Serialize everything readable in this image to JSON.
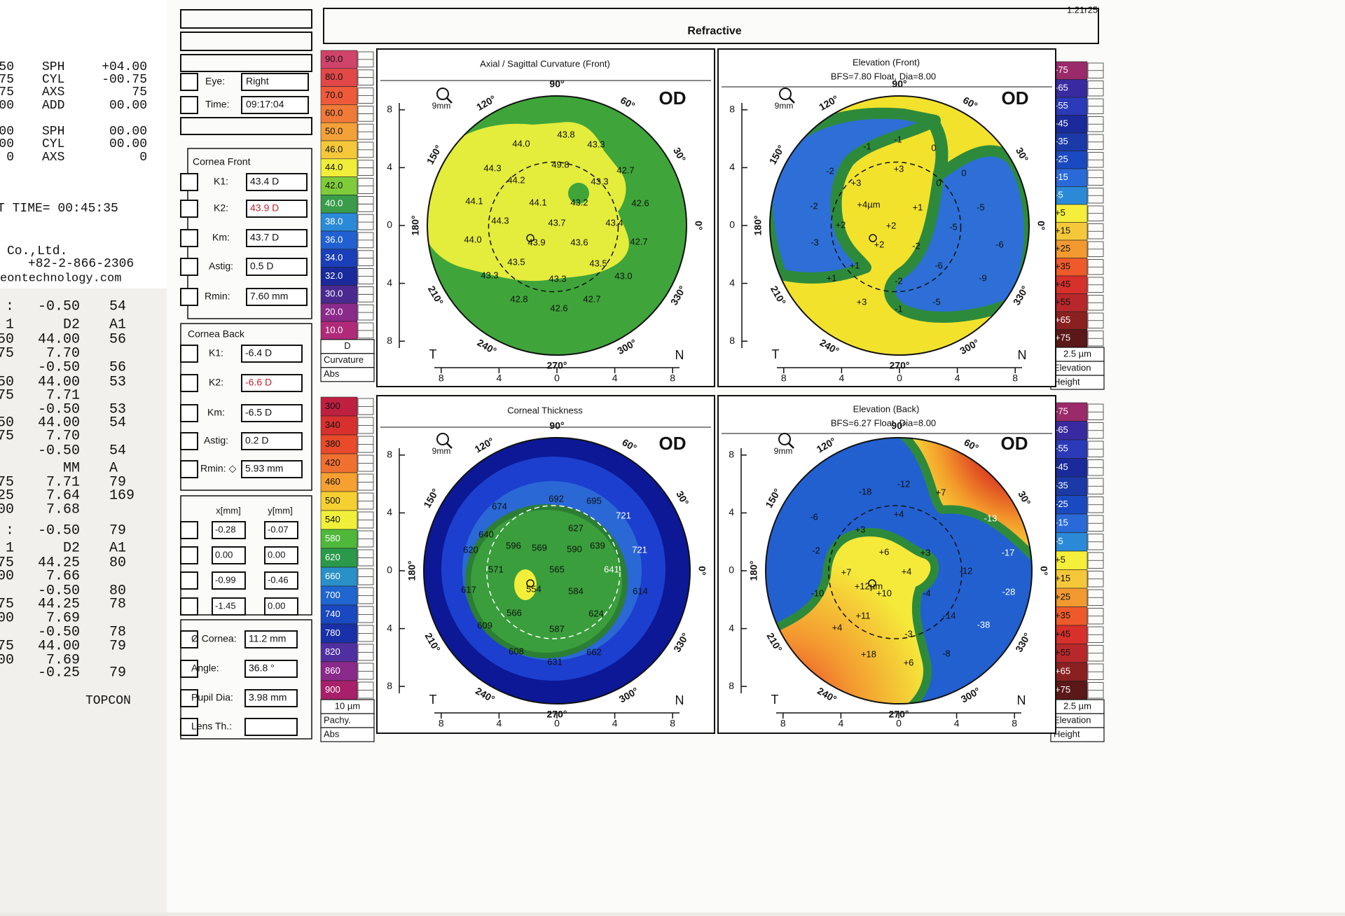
{
  "header": {
    "title": "Refractive",
    "code": "1.21r25"
  },
  "receipt": {
    "rows": [
      {
        "left": "50",
        "key": "SPH",
        "value": "+04.00"
      },
      {
        "left": "75",
        "key": "CYL",
        "value": "-00.75"
      },
      {
        "left": "75",
        "key": "AXS",
        "value": "75"
      },
      {
        "left": "00",
        "key": "ADD",
        "value": "00.00"
      },
      {
        "left": "00",
        "key": "SPH",
        "value": "00.00"
      },
      {
        "left": "00",
        "key": "CYL",
        "value": "00.00"
      },
      {
        "left": "0",
        "key": "AXS",
        "value": "0"
      }
    ],
    "time": "T TIME= 00:45:35",
    "company": "Co.,Ltd.",
    "phone": "+82-2-866-2306",
    "web": "eontechnology.com"
  },
  "printout": {
    "rows": [
      {
        "left": ":",
        "mid": "-0.50",
        "right": "54"
      },
      {
        "left": "1",
        "mid": "D2",
        "right": "A1"
      },
      {
        "left": "50",
        "mid": "44.00",
        "right": "56"
      },
      {
        "left": "75",
        "mid": "7.70"
      },
      {
        "mid": "-0.50",
        "right": "56"
      },
      {
        "left": "50",
        "mid": "44.00",
        "right": "53"
      },
      {
        "left": "75",
        "mid": "7.71"
      },
      {
        "mid": "-0.50",
        "right": "53"
      },
      {
        "left": "50",
        "mid": "44.00",
        "right": "54"
      },
      {
        "left": "75",
        "mid": "7.70"
      },
      {
        "mid": "-0.50",
        "right": "54"
      },
      {
        "mid": "MM",
        "right": "A"
      },
      {
        "left": "75",
        "mid": "7.71",
        "right": "79"
      },
      {
        "left": "25",
        "mid": "7.64",
        "right": "169"
      },
      {
        "left": "00",
        "mid": "7.68"
      },
      {
        "left": ":",
        "mid": "-0.50",
        "right": "79"
      },
      {
        "left": "1",
        "mid": "D2",
        "right": "A1"
      },
      {
        "left": "75",
        "mid": "44.25",
        "right": "80"
      },
      {
        "left": "00",
        "mid": "7.66"
      },
      {
        "mid": "-0.50",
        "right": "80"
      },
      {
        "left": "75",
        "mid": "44.25",
        "right": "78"
      },
      {
        "left": "00",
        "mid": "7.69"
      },
      {
        "mid": "-0.50",
        "right": "78"
      },
      {
        "left": "75",
        "mid": "44.00",
        "right": "79"
      },
      {
        "left": "00",
        "mid": "7.69"
      },
      {
        "mid": "-0.25",
        "right": "79"
      }
    ],
    "brand": "TOPCON"
  },
  "panel": {
    "eye": {
      "label": "Eye:",
      "value": "Right"
    },
    "time": {
      "label": "Time:",
      "value": "09:17:04"
    },
    "front": {
      "title": "Cornea Front",
      "rows": [
        {
          "label": "K1:",
          "value": "43.4 D"
        },
        {
          "label": "K2:",
          "value": "43.9 D",
          "color": "#c0262d"
        },
        {
          "label": "Km:",
          "value": "43.7 D"
        },
        {
          "label": "Astig:",
          "value": "0.5 D"
        },
        {
          "label": "Rmin:",
          "value": "7.60 mm"
        }
      ]
    },
    "back": {
      "title": "Cornea Back",
      "rows": [
        {
          "label": "K1:",
          "value": "-6.4 D"
        },
        {
          "label": "K2:",
          "value": "-6.6 D",
          "color": "#c0262d"
        },
        {
          "label": "Km:",
          "value": "-6.5 D"
        },
        {
          "label": "Astig:",
          "value": "0.2 D"
        },
        {
          "label": "Rmin: ◇",
          "value": "5.93 mm"
        }
      ]
    },
    "positions": {
      "headers": [
        "x[mm]",
        "y[mm]"
      ],
      "rows": [
        [
          "-0.28",
          "-0.07"
        ],
        [
          "0.00",
          "0.00"
        ],
        [
          "-0.99",
          "-0.46"
        ],
        [
          "-1.45",
          "0.00"
        ]
      ]
    },
    "bottom": [
      {
        "label": "Ø Cornea:",
        "value": "11.2 mm"
      },
      {
        "label": "Angle:",
        "value": "36.8 °"
      },
      {
        "label": "Pupil Dia:",
        "value": "3.98 mm"
      },
      {
        "label": "Lens Th.:"
      }
    ]
  },
  "scales": [
    {
      "labels": [
        "90.0",
        "80.0",
        "70.0",
        "60.0",
        "50.0",
        "46.0",
        "44.0",
        "42.0",
        "40.0",
        "38.0",
        "36.0",
        "34.0",
        "32.0",
        "30.0",
        "20.0",
        "10.0"
      ],
      "colors": [
        "#d0436a",
        "#e24848",
        "#ee5a3a",
        "#f07a38",
        "#f5a13a",
        "#f5c83a",
        "#f0ee3a",
        "#7fcc3a",
        "#3a9c4a",
        "#2a8ad8",
        "#2060d0",
        "#1a3fb8",
        "#1a2a9c",
        "#4a2a90",
        "#8a2a8a",
        "#b02a7a"
      ],
      "unit": "D",
      "name": "Curvature",
      "mode": "Abs"
    },
    {
      "labels": [
        "300",
        "340",
        "380",
        "420",
        "460",
        "500",
        "540",
        "580",
        "620",
        "660",
        "700",
        "740",
        "780",
        "820",
        "860",
        "900"
      ],
      "colors": [
        "#c02040",
        "#d8302e",
        "#e84a2a",
        "#f07030",
        "#f5a030",
        "#f5d030",
        "#f0f03a",
        "#4fb83a",
        "#2a9a4a",
        "#2a90c8",
        "#2066d0",
        "#1a48c0",
        "#1a30a8",
        "#5030a0",
        "#8a2a8a",
        "#a8206a"
      ],
      "unit": "10 µm",
      "name": "Pachy.",
      "mode": "Abs"
    },
    {
      "labels": [
        "-75",
        "-65",
        "-55",
        "-45",
        "-35",
        "-25",
        "-15",
        "-5",
        "+5",
        "+15",
        "+25",
        "+35",
        "+45",
        "+55",
        "+65",
        "+75"
      ],
      "colors": [
        "#9a2a6a",
        "#3a2aa0",
        "#2a3ab8",
        "#1a2a9a",
        "#1a3aa8",
        "#1a4ac0",
        "#2a6ad8",
        "#2a8ad8",
        "#f5ee3a",
        "#f5c83a",
        "#f29a30",
        "#ee5a2a",
        "#d8302a",
        "#b8282a",
        "#8a2020",
        "#5a1818"
      ],
      "unit": "2.5 µm",
      "name": "Elevation",
      "mode": "Height"
    }
  ],
  "maps": {
    "axes": {
      "angles": [
        "90°",
        "60°",
        "30°",
        "0°",
        "330°",
        "300°",
        "270°",
        "240°",
        "210°",
        "180°",
        "150°",
        "120°"
      ],
      "ticks": [
        8,
        4,
        0,
        4,
        8
      ],
      "sides": [
        "T",
        "N"
      ],
      "eye": "OD",
      "zoom": "9mm"
    },
    "items": [
      {
        "title": "Axial / Sagittal Curvature (Front)",
        "labels": [
          "43.8",
          "44.0",
          "43.3",
          "44.3",
          "49.8",
          "42.7",
          "44.2",
          "43.3",
          "44.1",
          "44.1",
          "43.2",
          "42.6",
          "44.3",
          "43.7",
          "43.4",
          "44.0",
          "43.9",
          "43.6",
          "42.7",
          "43.5",
          "43.5",
          "43.3",
          "43.3",
          "43.0",
          "42.8",
          "42.7",
          "42.6"
        ]
      },
      {
        "title": "Elevation (Front)",
        "subtitle": "BFS=7.80 Float, Dia=8.00",
        "labels": [
          "-1",
          "-1",
          "0",
          "-2",
          "+3",
          "+3",
          "0",
          "0",
          "+4µm",
          "-2",
          "+1",
          "-5",
          "+2",
          "+2",
          "-5",
          "-3",
          "+2",
          "-2",
          "-6",
          "+1",
          "-6",
          "+1",
          "-2",
          "-9",
          "-5",
          "+3",
          "-1"
        ]
      },
      {
        "title": "Corneal Thickness",
        "labels": [
          "674",
          "692",
          "695",
          "640",
          "627",
          "721",
          "596",
          "639",
          "620",
          "569",
          "590",
          "721",
          "571",
          "565",
          "641",
          "617",
          "554",
          "584",
          "614",
          "566",
          "624",
          "609",
          "587",
          "608",
          "631",
          "662"
        ]
      },
      {
        "title": "Elevation (Back)",
        "subtitle": "BFS=6.27 Float, Dia=8.00",
        "labels": [
          "-18",
          "-12",
          "+7",
          "-6",
          "+4",
          "-13",
          "+3",
          "-2",
          "+6",
          "+3",
          "-17",
          "+7",
          "+4",
          "-12",
          "-10",
          "+12µm",
          "+10",
          "-4",
          "-28",
          "+11",
          "-14",
          "+4",
          "-3",
          "-38",
          "+18",
          "-8",
          "+6"
        ]
      }
    ]
  }
}
